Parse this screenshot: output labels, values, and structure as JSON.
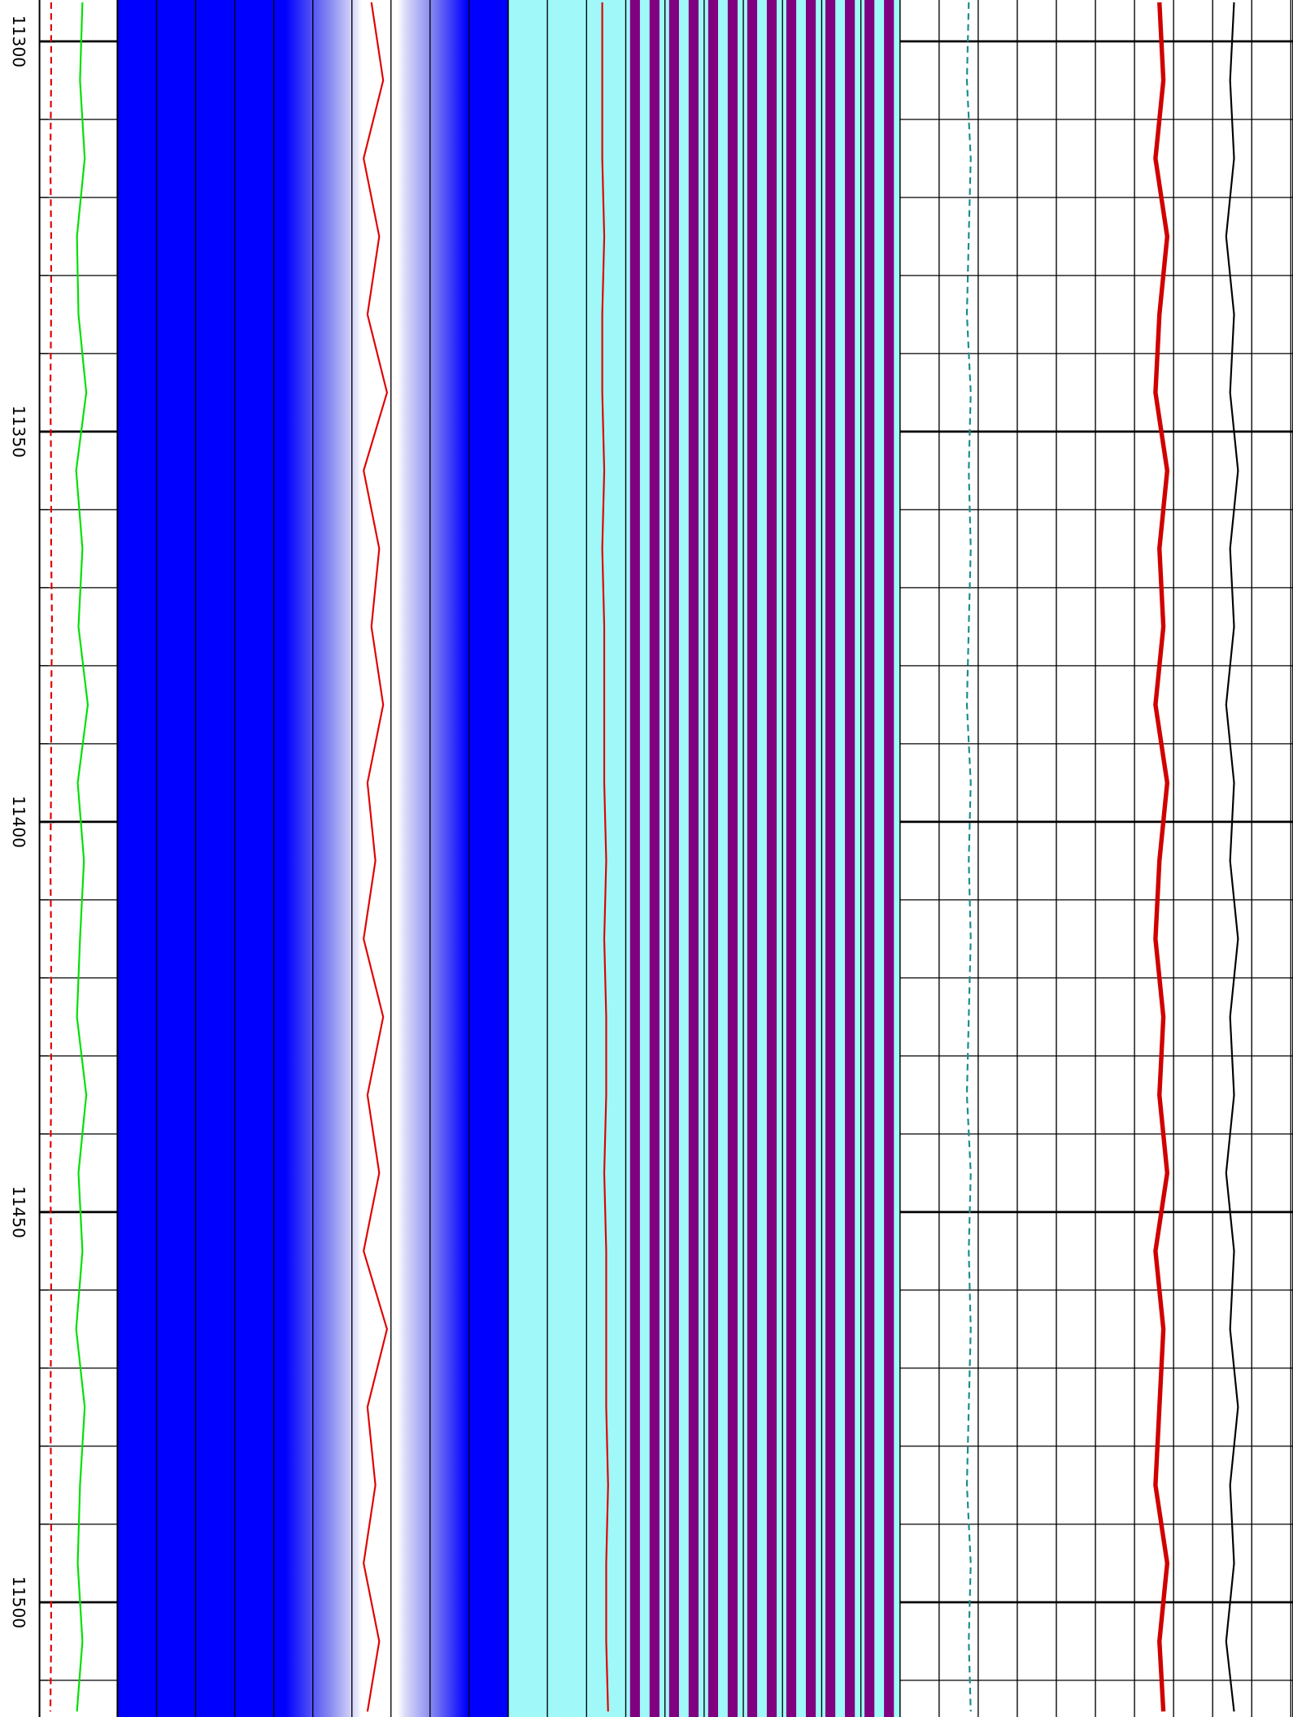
{
  "chart_data": {
    "type": "log",
    "ylim": [
      11294.7,
      11514.7
    ],
    "yticks": [
      11300,
      11350,
      11400,
      11450,
      11500
    ],
    "minor_yticks": [
      11300,
      11310,
      11320,
      11330,
      11340,
      11350,
      11360,
      11370,
      11380,
      11390,
      11400,
      11410,
      11420,
      11430,
      11440,
      11450,
      11460,
      11470,
      11480,
      11490,
      11500,
      11510
    ],
    "xlim": [
      0,
      100
    ],
    "x": [
      11295,
      11305,
      11315,
      11325,
      11335,
      11345,
      11355,
      11365,
      11375,
      11385,
      11395,
      11405,
      11415,
      11425,
      11435,
      11445,
      11455,
      11465,
      11475,
      11485,
      11495,
      11505,
      11514
    ],
    "series": [
      {
        "color": "#00e000",
        "track": 1,
        "values": [
          55,
          52,
          58,
          48,
          50,
          60,
          47,
          55,
          50,
          62,
          49,
          57,
          52,
          48,
          60,
          50,
          55,
          47,
          58,
          52,
          49,
          55,
          48
        ]
      },
      {
        "color": "#e00000",
        "track": 1,
        "dashed": true,
        "values": [
          15,
          15,
          14,
          15,
          15,
          14,
          15,
          15,
          16,
          15,
          15,
          14,
          15,
          15,
          15,
          14,
          15,
          15,
          14,
          15,
          15,
          15,
          14
        ]
      },
      {
        "color": "#e00000",
        "track": 2,
        "values": [
          65,
          68,
          63,
          67,
          64,
          69,
          63,
          67,
          65,
          68,
          64,
          66,
          63,
          68,
          64,
          67,
          63,
          69,
          64,
          66,
          63,
          67,
          64
        ]
      },
      {
        "color": "#e00000",
        "track": 3,
        "values": [
          24,
          24,
          24,
          24.5,
          24,
          24,
          24.5,
          24,
          24.5,
          24.5,
          24.5,
          25,
          24.5,
          25,
          25,
          24.5,
          25,
          25,
          25,
          25.5,
          25,
          25,
          25.5
        ]
      },
      {
        "color": "#1a8c8c",
        "track": 4,
        "dashed": true,
        "values": [
          17.5,
          17,
          18,
          17.5,
          17,
          18,
          17.5,
          18,
          17.5,
          17,
          18,
          17.5,
          18,
          17.5,
          17,
          18,
          17.5,
          18,
          17.5,
          17,
          18,
          17.5,
          18
        ]
      },
      {
        "color": "#d00000",
        "track": 4,
        "thick": true,
        "values": [
          66,
          67,
          65,
          68,
          66,
          65,
          68,
          66,
          67,
          65,
          68,
          66,
          65,
          67,
          66,
          68,
          65,
          67,
          66,
          65,
          68,
          66,
          67
        ]
      },
      {
        "color": "#000000",
        "track": 4,
        "values": [
          85,
          84,
          85,
          83,
          85,
          84,
          86,
          84,
          85,
          83,
          85,
          84,
          86,
          84,
          85,
          83,
          85,
          84,
          86,
          84,
          85,
          83,
          85
        ]
      }
    ]
  }
}
